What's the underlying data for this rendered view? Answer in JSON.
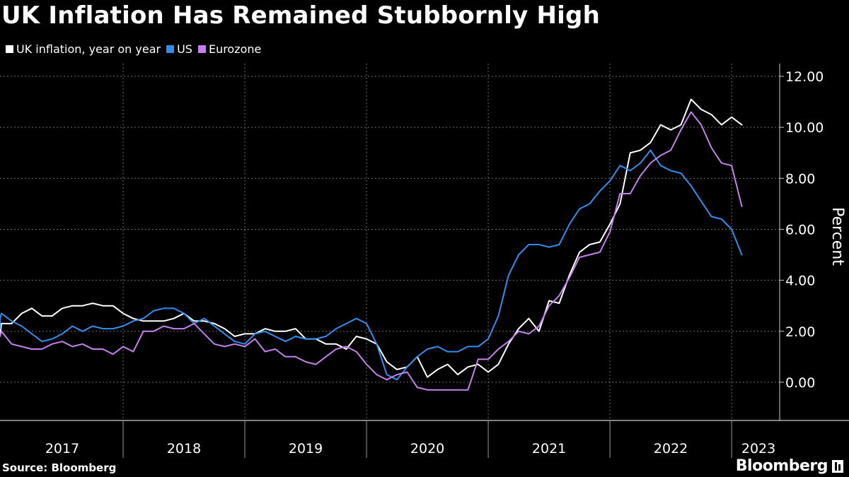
{
  "chart_data": {
    "type": "line",
    "title": "UK Inflation Has Remained Stubbornly High",
    "ylabel": "Percent",
    "xlabel": "",
    "ylim": [
      -1.5,
      12.5
    ],
    "yticks": [
      0,
      2,
      4,
      6,
      8,
      10,
      12
    ],
    "ytick_labels": [
      "0.00",
      "2.00",
      "4.00",
      "6.00",
      "8.00",
      "10.00",
      "12.00"
    ],
    "x_start": "2017-01",
    "x_end": "2023-03",
    "year_labels": [
      "2017",
      "2018",
      "2019",
      "2020",
      "2021",
      "2022",
      "2023"
    ],
    "series": [
      {
        "name": "UK inflation, year on year",
        "color": "#ffffff",
        "values": [
          1.8,
          2.3,
          2.3,
          2.7,
          2.9,
          2.6,
          2.6,
          2.9,
          3.0,
          3.0,
          3.1,
          3.0,
          3.0,
          2.7,
          2.5,
          2.4,
          2.4,
          2.4,
          2.5,
          2.7,
          2.4,
          2.4,
          2.3,
          2.1,
          1.8,
          1.9,
          1.9,
          2.1,
          2.0,
          2.0,
          2.1,
          1.7,
          1.7,
          1.5,
          1.5,
          1.3,
          1.8,
          1.7,
          1.5,
          0.8,
          0.5,
          0.6,
          1.0,
          0.2,
          0.5,
          0.7,
          0.3,
          0.6,
          0.7,
          0.4,
          0.7,
          1.5,
          2.1,
          2.5,
          2.0,
          3.2,
          3.1,
          4.2,
          5.1,
          5.4,
          5.5,
          6.2,
          7.0,
          9.0,
          9.1,
          9.4,
          10.1,
          9.9,
          10.1,
          11.1,
          10.7,
          10.5,
          10.1,
          10.4,
          10.1
        ],
        "start": "2016-12"
      },
      {
        "name": "US",
        "color": "#2f8ff0",
        "values": [
          2.1,
          2.5,
          2.7,
          2.4,
          2.2,
          1.9,
          1.6,
          1.7,
          1.9,
          2.2,
          2.0,
          2.2,
          2.1,
          2.1,
          2.2,
          2.4,
          2.5,
          2.8,
          2.9,
          2.9,
          2.7,
          2.3,
          2.5,
          2.2,
          1.9,
          1.6,
          1.5,
          1.9,
          2.0,
          1.8,
          1.6,
          1.8,
          1.7,
          1.7,
          1.8,
          2.1,
          2.3,
          2.5,
          2.3,
          1.5,
          0.3,
          0.1,
          0.6,
          1.0,
          1.3,
          1.4,
          1.2,
          1.2,
          1.4,
          1.4,
          1.7,
          2.6,
          4.2,
          5.0,
          5.4,
          5.4,
          5.3,
          5.4,
          6.2,
          6.8,
          7.0,
          7.5,
          7.9,
          8.5,
          8.3,
          8.6,
          9.1,
          8.5,
          8.3,
          8.2,
          7.7,
          7.1,
          6.5,
          6.4,
          6.0,
          5.0
        ],
        "start": "2016-11"
      },
      {
        "name": "Eurozone",
        "color": "#c480ec",
        "values": [
          1.8,
          2.0,
          1.5,
          1.4,
          1.3,
          1.3,
          1.5,
          1.6,
          1.4,
          1.5,
          1.3,
          1.3,
          1.1,
          1.4,
          1.2,
          2.0,
          2.0,
          2.2,
          2.1,
          2.1,
          2.3,
          1.9,
          1.5,
          1.4,
          1.5,
          1.4,
          1.7,
          1.2,
          1.3,
          1.0,
          1.0,
          0.8,
          0.7,
          1.0,
          1.3,
          1.4,
          1.2,
          0.7,
          0.3,
          0.1,
          0.3,
          0.4,
          -0.2,
          -0.3,
          -0.3,
          -0.3,
          -0.3,
          -0.3,
          0.9,
          0.9,
          1.3,
          1.6,
          2.0,
          1.9,
          2.2,
          3.0,
          3.4,
          4.1,
          4.9,
          5.0,
          5.1,
          5.9,
          7.4,
          7.4,
          8.1,
          8.6,
          8.9,
          9.1,
          9.9,
          10.6,
          10.1,
          9.2,
          8.6,
          8.5,
          6.9
        ],
        "start": "2016-12"
      }
    ]
  },
  "footer": {
    "source": "Source: Bloomberg",
    "brand": "Bloomberg"
  }
}
